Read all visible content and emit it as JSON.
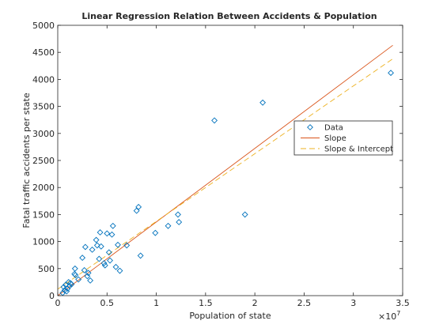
{
  "chart_data": {
    "type": "scatter",
    "title": "Linear Regression Relation Between Accidents & Population",
    "xlabel": "Population of state",
    "ylabel": "Fatal traffic accidents per state",
    "x_exponent_label": "×10",
    "x_exponent_power": "7",
    "xlim": [
      0,
      35000000
    ],
    "ylim": [
      0,
      5000
    ],
    "x_tick_values": [
      0,
      5000000,
      10000000,
      15000000,
      20000000,
      25000000,
      30000000,
      35000000
    ],
    "x_tick_labels": [
      "0",
      "0.5",
      "1",
      "1.5",
      "2",
      "2.5",
      "3",
      "3.5"
    ],
    "y_tick_values": [
      0,
      500,
      1000,
      1500,
      2000,
      2500,
      3000,
      3500,
      4000,
      4500,
      5000
    ],
    "y_tick_labels": [
      "0",
      "500",
      "1000",
      "1500",
      "2000",
      "2500",
      "3000",
      "3500",
      "4000",
      "4500",
      "5000"
    ],
    "grid": false,
    "legend_position": "right",
    "series": [
      {
        "name": "Data",
        "kind": "scatter",
        "marker": "diamond",
        "color": "#0072BD",
        "points": [
          [
            500000,
            50
          ],
          [
            600000,
            160
          ],
          [
            700000,
            100
          ],
          [
            800000,
            200
          ],
          [
            900000,
            80
          ],
          [
            1000000,
            130
          ],
          [
            1100000,
            250
          ],
          [
            1200000,
            180
          ],
          [
            1300000,
            230
          ],
          [
            1400000,
            210
          ],
          [
            1700000,
            400
          ],
          [
            1750000,
            500
          ],
          [
            1800000,
            380
          ],
          [
            2100000,
            300
          ],
          [
            2500000,
            700
          ],
          [
            2700000,
            470
          ],
          [
            2800000,
            900
          ],
          [
            3000000,
            360
          ],
          [
            3100000,
            420
          ],
          [
            3300000,
            280
          ],
          [
            3500000,
            850
          ],
          [
            3900000,
            1030
          ],
          [
            4000000,
            930
          ],
          [
            4200000,
            680
          ],
          [
            4300000,
            1170
          ],
          [
            4400000,
            910
          ],
          [
            4700000,
            600
          ],
          [
            4800000,
            560
          ],
          [
            5000000,
            1150
          ],
          [
            5200000,
            800
          ],
          [
            5300000,
            650
          ],
          [
            5500000,
            1130
          ],
          [
            5600000,
            1290
          ],
          [
            5900000,
            530
          ],
          [
            6100000,
            940
          ],
          [
            6300000,
            460
          ],
          [
            7000000,
            930
          ],
          [
            8000000,
            1570
          ],
          [
            8200000,
            1640
          ],
          [
            8400000,
            740
          ],
          [
            9900000,
            1160
          ],
          [
            11200000,
            1290
          ],
          [
            12200000,
            1500
          ],
          [
            12300000,
            1360
          ],
          [
            15900000,
            3240
          ],
          [
            19000000,
            1500
          ],
          [
            20800000,
            3570
          ],
          [
            33800000,
            4120
          ]
        ]
      },
      {
        "name": "Slope",
        "kind": "line",
        "color": "#D95319",
        "dash": "solid",
        "x": [
          0,
          34000000
        ],
        "y": [
          0,
          4630
        ]
      },
      {
        "name": "Slope & Intercept",
        "kind": "line",
        "color": "#EDB120",
        "dash": "dashed",
        "x": [
          0,
          34000000
        ],
        "y": [
          120,
          4380
        ]
      }
    ]
  }
}
